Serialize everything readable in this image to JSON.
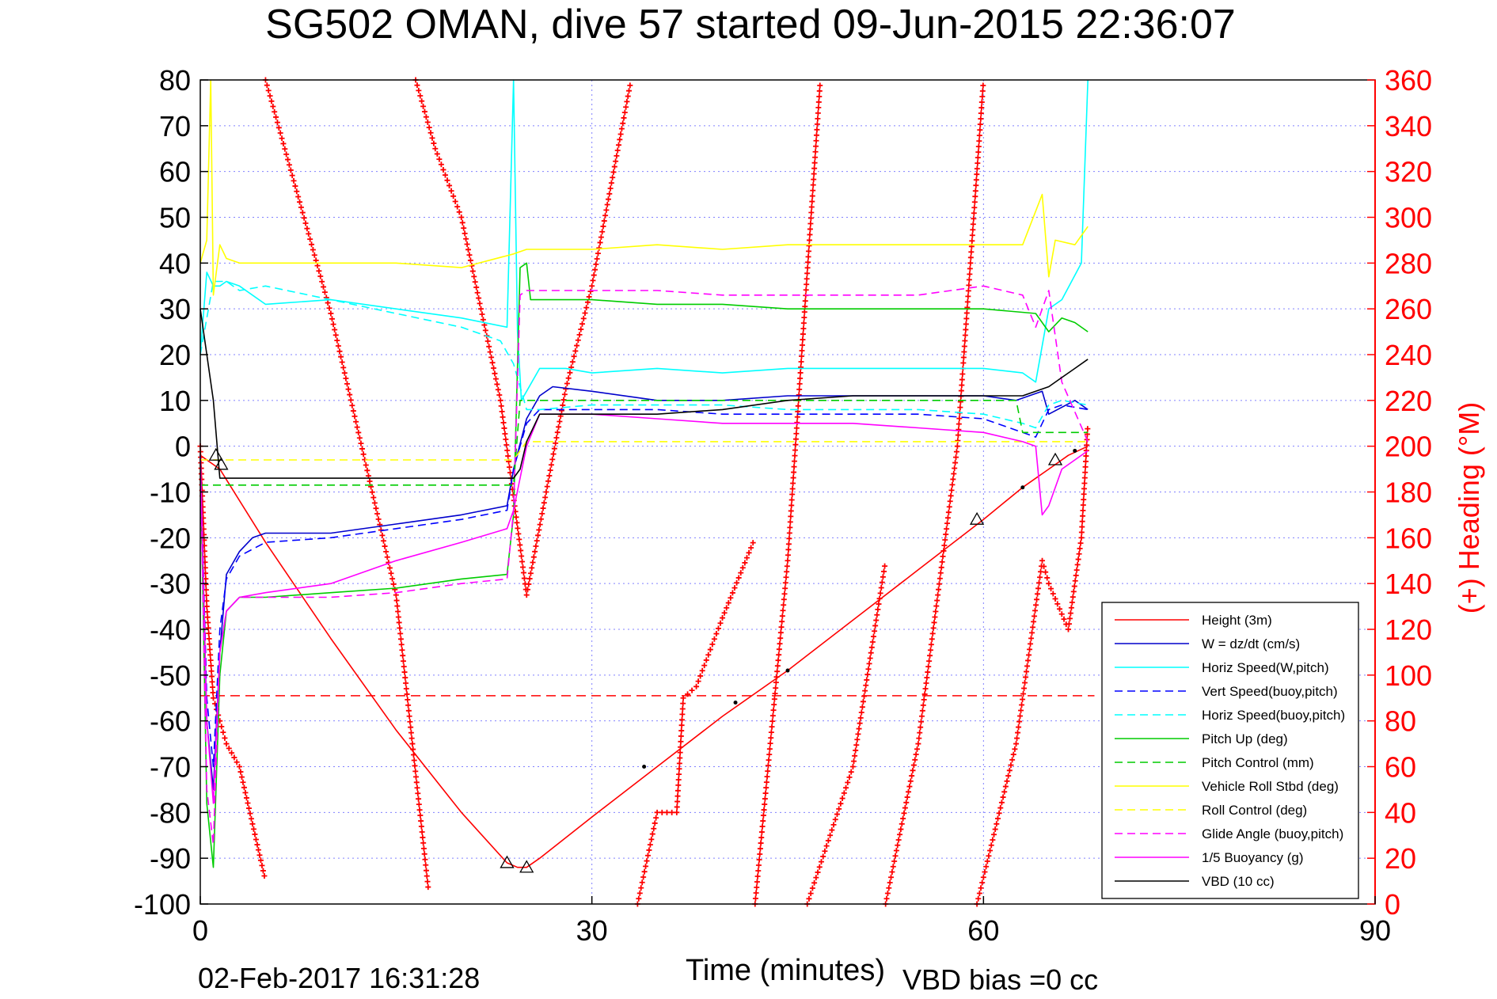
{
  "chart_data": {
    "type": "line",
    "title": "SG502 OMAN, dive 57 started 09-Jun-2015 22:36:07",
    "xlabel": "Time (minutes)",
    "ylabel_right": "(+) Heading (°M)",
    "footer_left": "02-Feb-2017 16:31:28",
    "footer_right": "VBD bias =0 cc",
    "xlim": [
      0,
      90
    ],
    "ylim": [
      -100,
      80
    ],
    "ylim_right": [
      0,
      360
    ],
    "xticks": [
      "0",
      "30",
      "60",
      "90"
    ],
    "xtick_values": [
      0,
      30,
      60,
      90
    ],
    "yticks": [
      "80",
      "70",
      "60",
      "50",
      "40",
      "30",
      "20",
      "10",
      "0",
      "-10",
      "-20",
      "-30",
      "-40",
      "-50",
      "-60",
      "-70",
      "-80",
      "-90",
      "-100"
    ],
    "ytick_values": [
      80,
      70,
      60,
      50,
      40,
      30,
      20,
      10,
      0,
      -10,
      -20,
      -30,
      -40,
      -50,
      -60,
      -70,
      -80,
      -90,
      -100
    ],
    "yticks_right": [
      "360",
      "340",
      "320",
      "300",
      "280",
      "260",
      "240",
      "220",
      "200",
      "180",
      "160",
      "140",
      "120",
      "100",
      "80",
      "60",
      "40",
      "20",
      "0"
    ],
    "ytick_right_values": [
      360,
      340,
      320,
      300,
      280,
      260,
      240,
      220,
      200,
      180,
      160,
      140,
      120,
      100,
      80,
      60,
      40,
      20,
      0
    ],
    "grid": true,
    "legend_position": "bottom-right",
    "reference_line": {
      "y": -54.5,
      "color": "#ff0000",
      "style": "dashed"
    },
    "series": [
      {
        "name": "Height (3m)",
        "color": "#ff0000",
        "style": "solid",
        "x": [
          0,
          1.5,
          5,
          10,
          15,
          20,
          23.5,
          24.3,
          25,
          26,
          30,
          35,
          40,
          45,
          50,
          55,
          60,
          63,
          65,
          66.5,
          68
        ],
        "y": [
          -2,
          -5,
          -21,
          -42,
          -62,
          -80,
          -91,
          -92,
          -92,
          -90,
          -81,
          -70,
          -59,
          -49,
          -38,
          -27,
          -16,
          -9,
          -5,
          -2,
          0
        ]
      },
      {
        "name": "W = dz/dt (cm/s)",
        "color": "#0000cc",
        "style": "solid",
        "x": [
          0,
          0.5,
          1,
          1.5,
          2,
          3,
          4,
          5,
          10,
          15,
          20,
          23.5,
          24,
          25,
          26,
          27,
          30,
          35,
          40,
          45,
          50,
          55,
          60,
          62.5,
          63.5,
          64.5,
          65,
          67,
          68
        ],
        "y": [
          -2,
          -60,
          -75,
          -45,
          -28,
          -23,
          -20,
          -19,
          -19,
          -17,
          -15,
          -13,
          -5,
          6,
          11,
          13,
          12,
          10,
          10,
          11,
          11,
          11,
          11,
          10,
          11,
          12,
          7,
          10,
          8
        ]
      },
      {
        "name": "Horiz Speed(W,pitch)",
        "color": "#00ffff",
        "style": "solid",
        "x": [
          0,
          0.5,
          1,
          1.5,
          2,
          3,
          5,
          10,
          15,
          20,
          23.5,
          24,
          24.3,
          24.6,
          25,
          26,
          28,
          30,
          35,
          40,
          45,
          50,
          55,
          60,
          63,
          64,
          65,
          66,
          67.5,
          68
        ],
        "y": [
          20,
          38,
          35,
          35,
          36,
          35,
          31,
          32,
          30,
          28,
          26,
          80,
          25,
          10,
          12,
          17,
          17,
          16,
          17,
          16,
          17,
          17,
          17,
          17,
          16,
          14,
          30,
          32,
          40,
          80
        ]
      },
      {
        "name": "Vert Speed(buoy,pitch)",
        "color": "#0000ff",
        "style": "dashed",
        "x": [
          0,
          0.5,
          1,
          1.5,
          2,
          3,
          5,
          10,
          15,
          20,
          23.5,
          24,
          25,
          26,
          27,
          30,
          35,
          40,
          45,
          50,
          55,
          60,
          63,
          64,
          65,
          66,
          68
        ],
        "y": [
          -2,
          -55,
          -70,
          -40,
          -29,
          -24,
          -21,
          -20,
          -18,
          -16,
          -14,
          -5,
          5,
          8,
          8,
          8,
          8,
          7,
          7,
          7,
          7,
          6,
          3,
          2,
          8,
          9,
          8
        ]
      },
      {
        "name": "Horiz Speed(buoy,pitch)",
        "color": "#00ffff",
        "style": "dashed",
        "x": [
          0,
          1,
          2,
          3,
          5,
          10,
          15,
          20,
          23,
          24,
          25,
          26,
          30,
          35,
          40,
          45,
          50,
          55,
          60,
          63,
          64,
          65,
          66,
          68
        ],
        "y": [
          20,
          36,
          36,
          34,
          35,
          32,
          29,
          26,
          23,
          18,
          8,
          8,
          9,
          9,
          9,
          8,
          8,
          8,
          7,
          5,
          4,
          9,
          10,
          9
        ]
      },
      {
        "name": "Pitch Up (deg)",
        "color": "#00cc00",
        "style": "solid",
        "x": [
          0,
          0.5,
          1,
          1.5,
          2,
          3,
          5,
          10,
          15,
          20,
          23.5,
          24,
          24.5,
          25,
          25.3,
          26,
          30,
          35,
          40,
          45,
          50,
          55,
          60,
          64,
          65,
          66,
          67,
          68
        ],
        "y": [
          -2,
          -78,
          -92,
          -50,
          -36,
          -33,
          -33,
          -32,
          -31,
          -29,
          -28,
          -15,
          39,
          40,
          32,
          32,
          32,
          31,
          31,
          30,
          30,
          30,
          30,
          29,
          25,
          28,
          27,
          25
        ]
      },
      {
        "name": "Pitch Control (mm)",
        "color": "#00cc00",
        "style": "dashed",
        "x": [
          0,
          0.5,
          1,
          3,
          10,
          20,
          24,
          24.5,
          25,
          30,
          40,
          50,
          60,
          62.5,
          63,
          64,
          66,
          68
        ],
        "y": [
          -8.5,
          -8.5,
          -8.5,
          -8.5,
          -8.5,
          -8.5,
          -8.5,
          10,
          10,
          10,
          10,
          10,
          10,
          10,
          3,
          3,
          3,
          3
        ]
      },
      {
        "name": "Vehicle Roll Stbd (deg)",
        "color": "#ffff00",
        "style": "solid",
        "x": [
          0,
          0.5,
          0.8,
          1,
          1.5,
          2,
          3,
          5,
          10,
          15,
          20,
          24,
          25,
          30,
          35,
          40,
          45,
          50,
          55,
          60,
          63,
          64.5,
          65,
          65.5,
          67,
          68
        ],
        "y": [
          40,
          45,
          80,
          33,
          44,
          41,
          40,
          40,
          40,
          40,
          39,
          42,
          43,
          43,
          44,
          43,
          44,
          44,
          44,
          44,
          44,
          55,
          37,
          45,
          44,
          48
        ]
      },
      {
        "name": "Roll Control (deg)",
        "color": "#ffff00",
        "style": "dashed",
        "x": [
          0,
          1,
          24,
          25,
          68
        ],
        "y": [
          -3,
          -3,
          -3,
          1,
          1
        ]
      },
      {
        "name": "Glide Angle (buoy,pitch)",
        "color": "#ff00ff",
        "style": "dashed",
        "x": [
          0,
          0.5,
          1,
          1.5,
          2,
          3,
          5,
          10,
          15,
          20,
          23.5,
          24,
          24.5,
          25,
          26,
          30,
          35,
          40,
          45,
          50,
          55,
          60,
          63,
          64,
          65,
          66,
          68
        ],
        "y": [
          -2,
          -75,
          -87,
          -45,
          -36,
          -33,
          -33,
          -33,
          -32,
          -30,
          -29,
          -14,
          33,
          34,
          34,
          34,
          34,
          33,
          33,
          33,
          33,
          35,
          33,
          26,
          34,
          14,
          1
        ]
      },
      {
        "name": "1/5 Buoyancy (g)",
        "color": "#ff00ff",
        "style": "solid",
        "x": [
          0,
          0.5,
          1,
          1.5,
          2,
          3,
          5,
          10,
          15,
          20,
          23.5,
          24,
          25,
          26,
          28,
          30,
          35,
          40,
          45,
          50,
          55,
          60,
          63,
          64,
          64.5,
          65,
          66,
          68
        ],
        "y": [
          -2,
          -60,
          -78,
          -45,
          -36,
          -33,
          -32,
          -30,
          -25,
          -21,
          -18,
          -14,
          0,
          7,
          7,
          7,
          6,
          5,
          5,
          5,
          4,
          3,
          1,
          0,
          -15,
          -13,
          -5,
          -1
        ]
      },
      {
        "name": "VBD (10 cc)",
        "color": "#000000",
        "style": "solid",
        "x": [
          0,
          1,
          1.5,
          3,
          10,
          20,
          24,
          24.5,
          25,
          25.5,
          26,
          30,
          35,
          40,
          45,
          50,
          55,
          60,
          63,
          65,
          66,
          67,
          68
        ],
        "y": [
          30,
          10,
          -7,
          -7,
          -7,
          -7,
          -7,
          -5,
          1,
          4,
          7,
          7,
          7,
          8,
          10,
          11,
          11,
          11,
          11,
          13,
          15,
          17,
          19
        ]
      }
    ],
    "heading_series": {
      "name": "Heading",
      "color": "#ff0000",
      "marker": "+",
      "axis": "right",
      "segments": [
        {
          "x": [
            0,
            0.5,
            1,
            1.5,
            2,
            3,
            4,
            5
          ],
          "y": [
            200,
            130,
            90,
            80,
            70,
            60,
            35,
            10
          ]
        },
        {
          "x": [
            5,
            10,
            15,
            17.5
          ],
          "y": [
            360,
            258,
            135,
            5
          ]
        },
        {
          "x": [
            16.5,
            18,
            20,
            23,
            25
          ],
          "y": [
            360,
            330,
            300,
            220,
            135
          ]
        },
        {
          "x": [
            25,
            28,
            30,
            31.5,
            33
          ],
          "y": [
            135,
            225,
            270,
            315,
            360
          ]
        },
        {
          "x": [
            33.5,
            35,
            36.5,
            37,
            38,
            40,
            42.5
          ],
          "y": [
            0,
            40,
            40,
            90,
            95,
            125,
            160
          ]
        },
        {
          "x": [
            42.5,
            45,
            47.5
          ],
          "y": [
            0,
            150,
            360
          ]
        },
        {
          "x": [
            46.5,
            50,
            52.5
          ],
          "y": [
            0,
            60,
            150
          ]
        },
        {
          "x": [
            52.5,
            55,
            58,
            60
          ],
          "y": [
            0,
            70,
            200,
            360
          ]
        },
        {
          "x": [
            59.5,
            62.5,
            64.5,
            65,
            66.5,
            67.5,
            68
          ],
          "y": [
            0,
            70,
            150,
            140,
            120,
            160,
            210
          ]
        }
      ]
    },
    "markers": [
      {
        "symbol": "triangle",
        "x": [
          1.2,
          1.6,
          23.5,
          25,
          59.5,
          65.5
        ],
        "y": [
          -2,
          -4,
          -91,
          -92,
          -16,
          -3
        ]
      },
      {
        "symbol": "dot",
        "x": [
          34,
          41,
          45,
          63,
          67
        ],
        "y": [
          -70,
          -56,
          -49,
          -9,
          -1
        ]
      }
    ]
  }
}
